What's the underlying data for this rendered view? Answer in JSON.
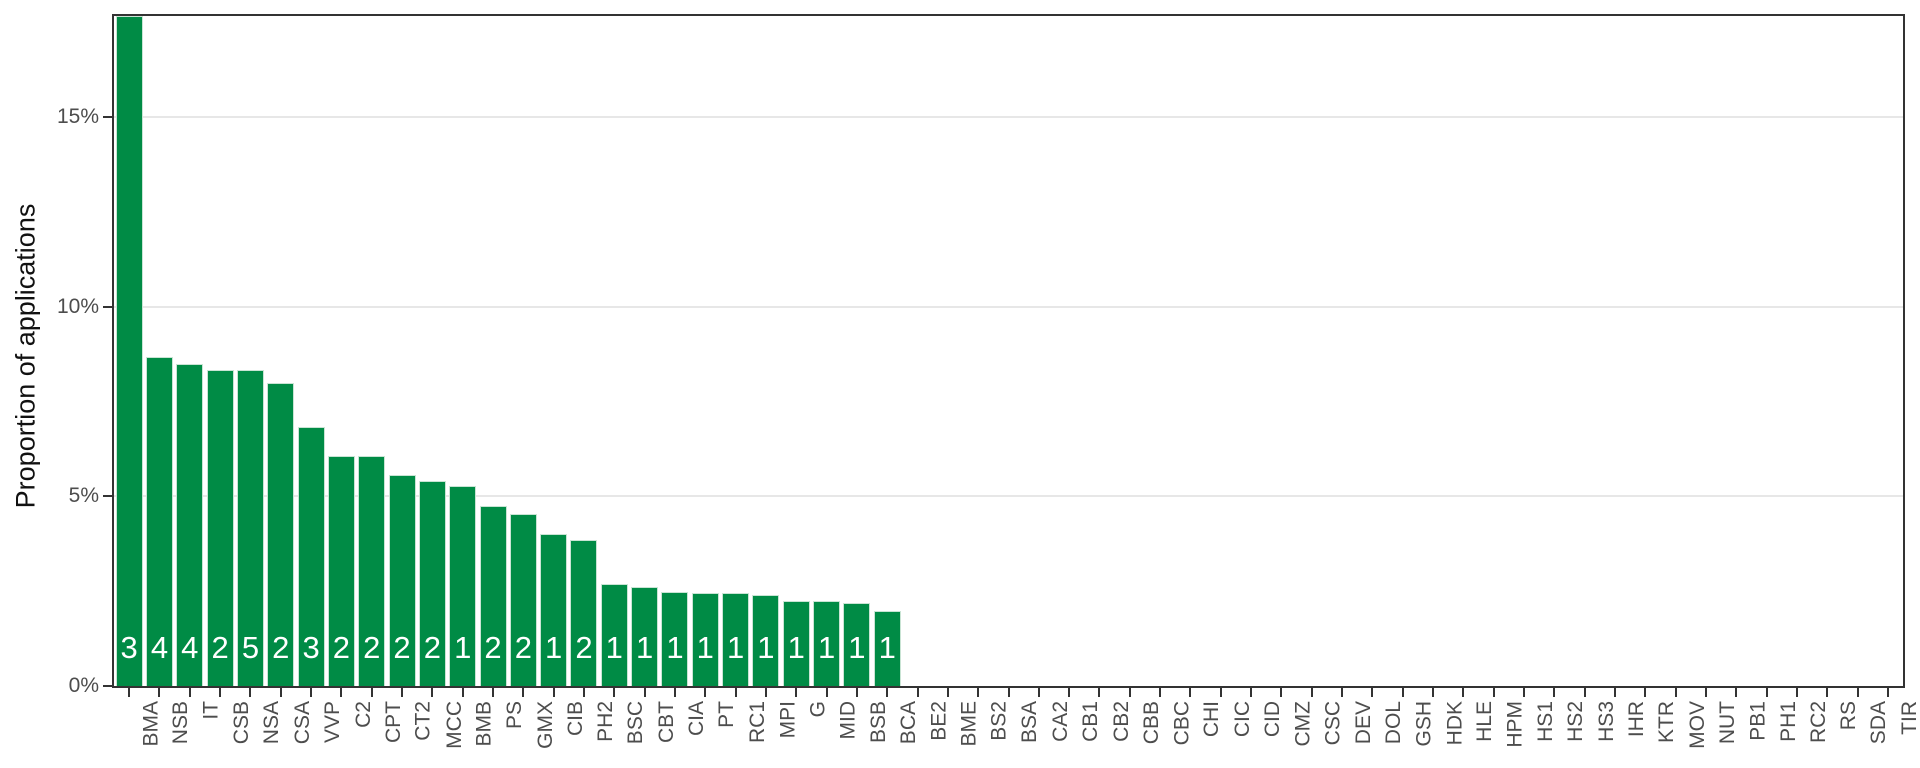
{
  "chart_data": {
    "type": "bar",
    "title": "",
    "xlabel": "",
    "ylabel": "Proportion of applications",
    "ylim": [
      0,
      17.67
    ],
    "grid": "horizontal-major-only",
    "legend": "none",
    "bar_orientation": "vertical",
    "y_ticks": [
      {
        "label": "0%",
        "value": 0
      },
      {
        "label": "5%",
        "value": 5
      },
      {
        "label": "10%",
        "value": 10
      },
      {
        "label": "15%",
        "value": 15
      }
    ],
    "categories": [
      "BMA",
      "NSB",
      "IT",
      "CSB",
      "NSA",
      "CSA",
      "VVP",
      "C2",
      "CPT",
      "CT2",
      "MCC",
      "BMB",
      "PS",
      "GMX",
      "CIB",
      "PH2",
      "BSC",
      "CBT",
      "CIA",
      "PT",
      "RC1",
      "MPI",
      "G",
      "MID",
      "BSB",
      "BCA",
      "BE2",
      "BME",
      "BS2",
      "BSA",
      "CA2",
      "CB1",
      "CB2",
      "CBB",
      "CBC",
      "CHI",
      "CIC",
      "CID",
      "CMZ",
      "CSC",
      "DEV",
      "DOL",
      "GSH",
      "HDK",
      "HLE",
      "HPM",
      "HS1",
      "HS2",
      "HS3",
      "IHR",
      "KTR",
      "MOV",
      "NUT",
      "PB1",
      "PH1",
      "RC2",
      "RS",
      "SDA",
      "TIR"
    ],
    "values_percent": [
      17.67,
      8.68,
      8.5,
      8.34,
      8.34,
      8.0,
      6.82,
      6.06,
      6.06,
      5.56,
      5.4,
      5.27,
      4.75,
      4.54,
      4.01,
      3.86,
      2.7,
      2.62,
      2.49,
      2.44,
      2.44,
      2.39,
      2.24,
      2.24,
      2.18,
      1.99,
      0,
      0,
      0,
      0,
      0,
      0,
      0,
      0,
      0,
      0,
      0,
      0,
      0,
      0,
      0,
      0,
      0,
      0,
      0,
      0,
      0,
      0,
      0,
      0,
      0,
      0,
      0,
      0,
      0,
      0,
      0,
      0,
      0
    ],
    "bar_value_labels": [
      "3",
      "4",
      "4",
      "2",
      "5",
      "2",
      "3",
      "2",
      "2",
      "2",
      "2",
      "1",
      "2",
      "2",
      "1",
      "2",
      "1",
      "1",
      "1",
      "1",
      "1",
      "1",
      "1",
      "1",
      "1",
      "1",
      "",
      "",
      "",
      "",
      "",
      "",
      "",
      "",
      "",
      "",
      "",
      "",
      "",
      "",
      "",
      "",
      "",
      "",
      "",
      "",
      "",
      "",
      "",
      "",
      "",
      "",
      "",
      "",
      "",
      "",
      "",
      "",
      ""
    ],
    "colors": {
      "bar_fill": "#008B45",
      "bar_edge": "#c9e4d4",
      "bar_value_text": "#ffffff",
      "gridline": "#e7e7e7",
      "panel_border": "#333333",
      "tick_mark": "#333333",
      "tick_label": "#4d4d4d",
      "axis_title": "#111111",
      "background": "#ffffff"
    }
  }
}
